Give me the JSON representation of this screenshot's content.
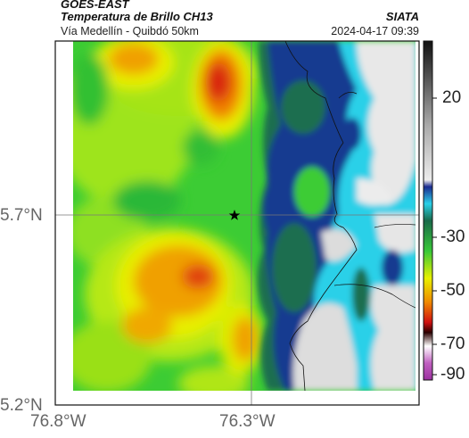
{
  "header": {
    "product": "GOES-EAST",
    "channel_title": "Temperatura de Brillo CH13",
    "agency": "SIATA",
    "route": "Vía Medellín - Quibdó 50km",
    "timestamp": "2024-04-17 09:39"
  },
  "map": {
    "lat_ticks": [
      "5.7°N",
      "5.2°N"
    ],
    "lon_ticks": [
      "76.8°W",
      "76.3°W"
    ],
    "marker": "star-marker",
    "colors": {
      "cold_cloud": "#dcdcdc",
      "deep_blue": "#0a2a8c",
      "cyan": "#2ad0e8",
      "dark_green": "#1a6a4a",
      "green": "#38c838",
      "light_green": "#8ee020",
      "yellow": "#e8f000",
      "orange": "#f08a00",
      "red": "#d01010"
    }
  },
  "colorbar": {
    "ticks": [
      "20",
      "-30",
      "-50",
      "-70",
      "-90"
    ]
  }
}
